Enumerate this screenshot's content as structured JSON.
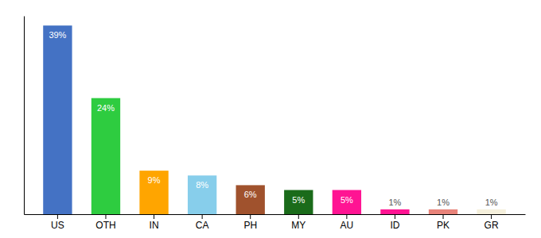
{
  "chart_data": {
    "type": "bar",
    "categories": [
      "US",
      "OTH",
      "IN",
      "CA",
      "PH",
      "MY",
      "AU",
      "ID",
      "PK",
      "GR"
    ],
    "values": [
      39,
      24,
      9,
      8,
      6,
      5,
      5,
      1,
      1,
      1
    ],
    "value_labels": [
      "39%",
      "24%",
      "9%",
      "8%",
      "6%",
      "5%",
      "5%",
      "1%",
      "1%",
      "1%"
    ],
    "colors": [
      "#4472C4",
      "#2ECC40",
      "#FFA500",
      "#87CEEB",
      "#A0522D",
      "#1A6B1A",
      "#FF1493",
      "#FF1493",
      "#E8837A",
      "#F5F0DC"
    ],
    "ylim": [
      0,
      41
    ],
    "yticks": [],
    "grid": false,
    "data_labels": true,
    "tick_labels": "x"
  }
}
